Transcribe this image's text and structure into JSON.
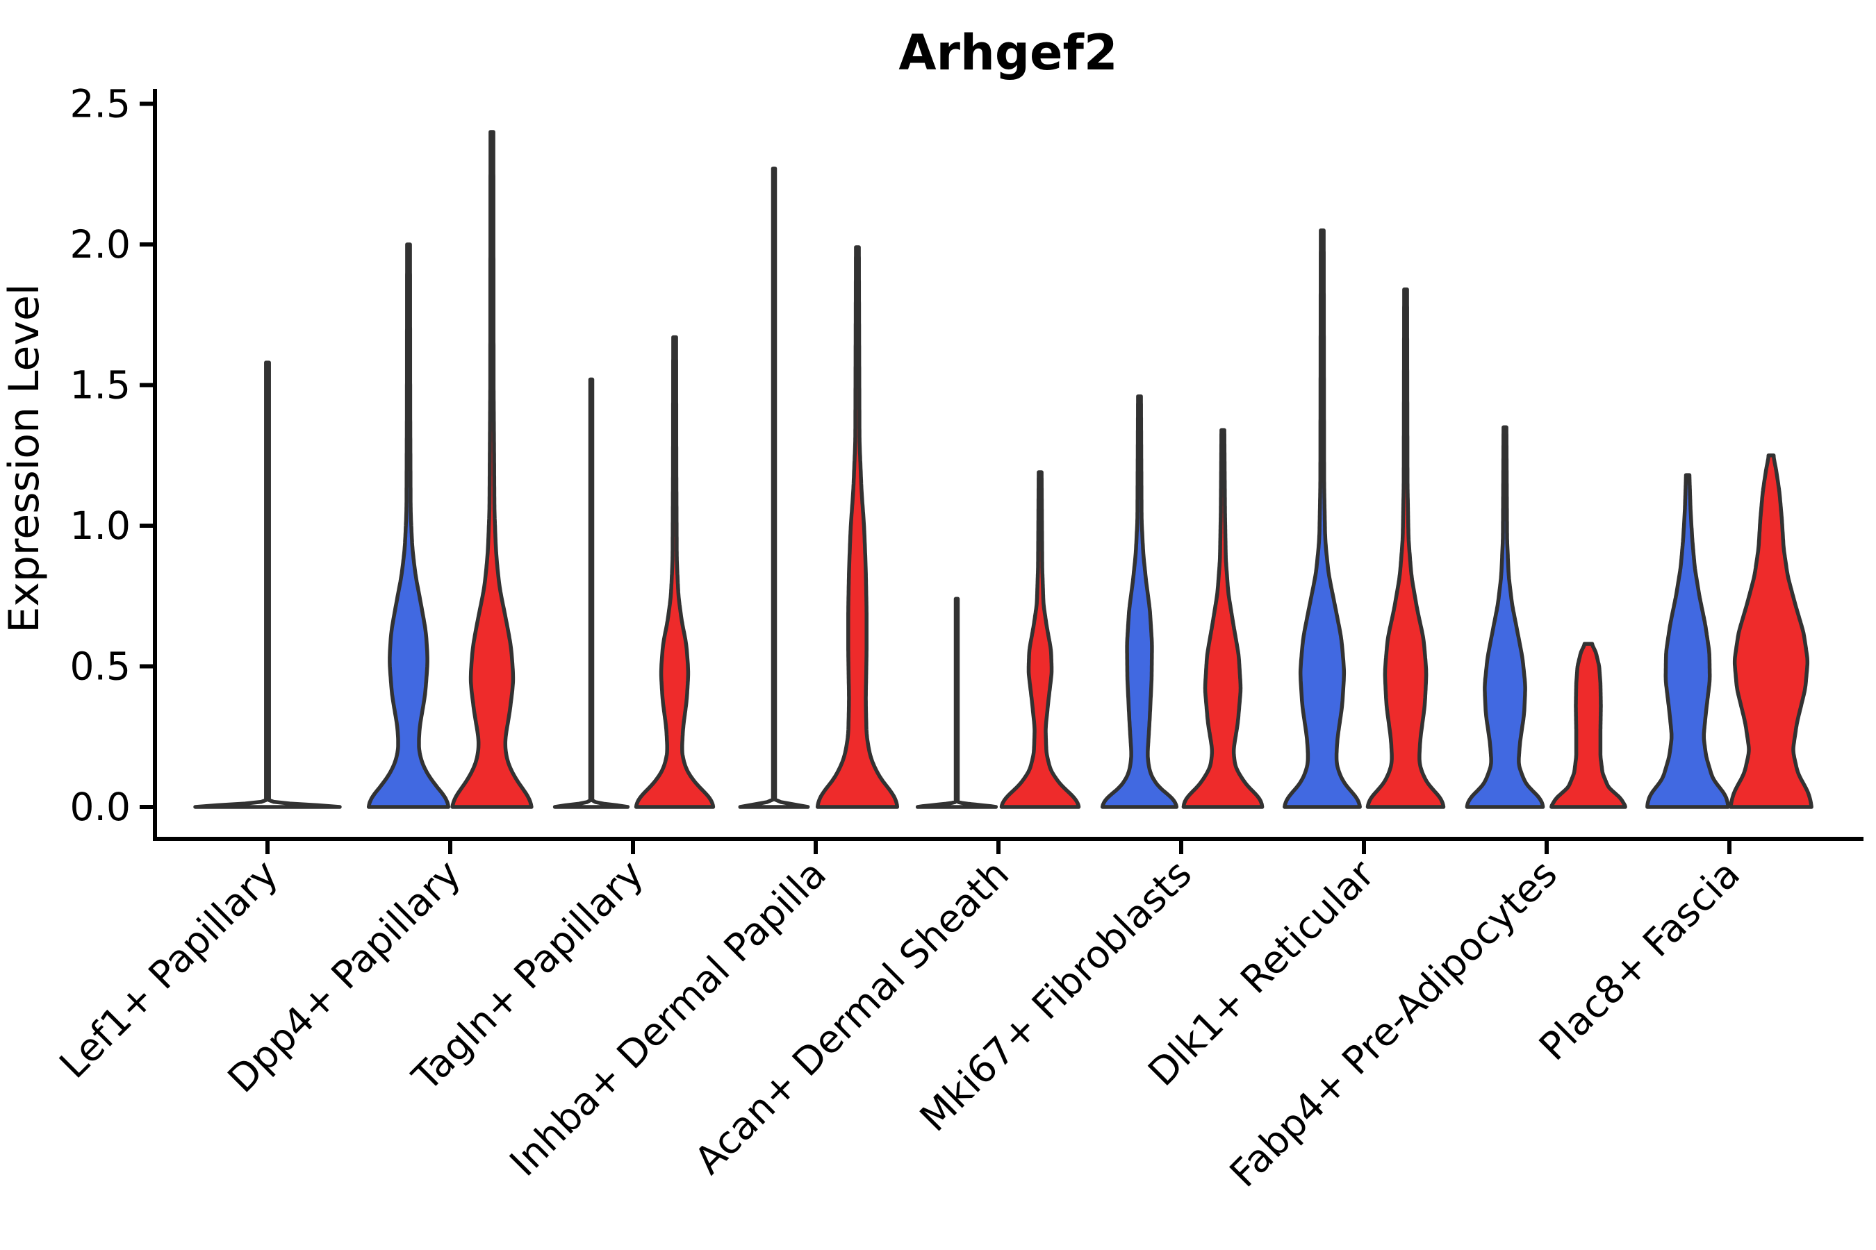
{
  "chart_data": {
    "type": "violin",
    "title": "Arhgef2",
    "ylabel": "Expression Level",
    "xlabel": "",
    "ylim": [
      0,
      2.5
    ],
    "yticks": [
      "0.0",
      "0.5",
      "1.0",
      "1.5",
      "2.0",
      "2.5"
    ],
    "ytick_values": [
      0.0,
      0.5,
      1.0,
      1.5,
      2.0,
      2.5
    ],
    "grid": false,
    "legend": "none",
    "groups": [
      "blue",
      "red"
    ],
    "colors": {
      "blue": "#4169E1",
      "red": "#EE2B2B",
      "none": "none",
      "outline": "#323232",
      "axis": "#000000"
    },
    "categories": [
      {
        "label": "Lef1+ Papillary",
        "violins": [
          {
            "group": "single",
            "color": "none",
            "side": "center",
            "flat": true,
            "max": 1.58,
            "profile": [
              [
                0,
                1
              ],
              [
                0.015,
                0.012
              ],
              [
                1.58,
                0.012
              ]
            ]
          }
        ]
      },
      {
        "label": "Dpp4+ Papillary",
        "violins": [
          {
            "group": "blue",
            "color": "blue",
            "side": "left",
            "flat": false,
            "max": 2.0,
            "profile": [
              [
                0,
                0.98
              ],
              [
                0.03,
                0.93
              ],
              [
                0.08,
                0.62
              ],
              [
                0.14,
                0.36
              ],
              [
                0.2,
                0.24
              ],
              [
                0.28,
                0.26
              ],
              [
                0.4,
                0.4
              ],
              [
                0.52,
                0.46
              ],
              [
                0.62,
                0.42
              ],
              [
                0.72,
                0.3
              ],
              [
                0.82,
                0.17
              ],
              [
                0.92,
                0.09
              ],
              [
                1.05,
                0.05
              ],
              [
                1.4,
                0.04
              ],
              [
                2.0,
                0.035
              ]
            ]
          },
          {
            "group": "red",
            "color": "red",
            "side": "right",
            "flat": false,
            "max": 2.4,
            "profile": [
              [
                0,
                0.98
              ],
              [
                0.03,
                0.93
              ],
              [
                0.09,
                0.6
              ],
              [
                0.16,
                0.36
              ],
              [
                0.23,
                0.3
              ],
              [
                0.33,
                0.42
              ],
              [
                0.45,
                0.52
              ],
              [
                0.57,
                0.46
              ],
              [
                0.68,
                0.32
              ],
              [
                0.78,
                0.18
              ],
              [
                0.9,
                0.1
              ],
              [
                1.05,
                0.06
              ],
              [
                1.5,
                0.04
              ],
              [
                2.4,
                0.035
              ]
            ]
          }
        ]
      },
      {
        "label": "Tagln+ Papillary",
        "violins": [
          {
            "group": "blue",
            "color": "none",
            "side": "left",
            "flat": true,
            "max": 1.52,
            "profile": [
              [
                0,
                1
              ],
              [
                0.015,
                0.025
              ],
              [
                1.52,
                0.025
              ]
            ]
          },
          {
            "group": "red",
            "color": "red",
            "side": "right",
            "flat": false,
            "max": 1.67,
            "profile": [
              [
                0,
                0.95
              ],
              [
                0.03,
                0.88
              ],
              [
                0.08,
                0.52
              ],
              [
                0.13,
                0.28
              ],
              [
                0.19,
                0.17
              ],
              [
                0.28,
                0.2
              ],
              [
                0.38,
                0.29
              ],
              [
                0.48,
                0.33
              ],
              [
                0.58,
                0.28
              ],
              [
                0.66,
                0.17
              ],
              [
                0.75,
                0.09
              ],
              [
                0.88,
                0.05
              ],
              [
                1.2,
                0.04
              ],
              [
                1.67,
                0.035
              ]
            ]
          }
        ]
      },
      {
        "label": "Inhba+ Dermal Papilla",
        "violins": [
          {
            "group": "blue",
            "color": "none",
            "side": "left",
            "flat": true,
            "max": 2.27,
            "profile": [
              [
                0,
                1
              ],
              [
                0.015,
                0.025
              ],
              [
                2.27,
                0.025
              ]
            ]
          },
          {
            "group": "red",
            "color": "red",
            "side": "right",
            "flat": false,
            "max": 1.99,
            "profile": [
              [
                0,
                0.98
              ],
              [
                0.04,
                0.9
              ],
              [
                0.1,
                0.55
              ],
              [
                0.17,
                0.32
              ],
              [
                0.25,
                0.22
              ],
              [
                0.38,
                0.2
              ],
              [
                0.55,
                0.22
              ],
              [
                0.7,
                0.22
              ],
              [
                0.85,
                0.2
              ],
              [
                1.0,
                0.16
              ],
              [
                1.12,
                0.1
              ],
              [
                1.3,
                0.05
              ],
              [
                1.99,
                0.035
              ]
            ]
          }
        ]
      },
      {
        "label": "Acan+ Dermal Sheath",
        "violins": [
          {
            "group": "blue",
            "color": "none",
            "side": "left",
            "flat": true,
            "max": 0.74,
            "profile": [
              [
                0,
                1
              ],
              [
                0.015,
                0.025
              ],
              [
                0.74,
                0.025
              ]
            ]
          },
          {
            "group": "red",
            "color": "red",
            "side": "right",
            "flat": false,
            "max": 1.19,
            "profile": [
              [
                0,
                0.95
              ],
              [
                0.03,
                0.85
              ],
              [
                0.08,
                0.48
              ],
              [
                0.13,
                0.25
              ],
              [
                0.19,
                0.15
              ],
              [
                0.28,
                0.13
              ],
              [
                0.38,
                0.2
              ],
              [
                0.48,
                0.28
              ],
              [
                0.56,
                0.26
              ],
              [
                0.64,
                0.16
              ],
              [
                0.72,
                0.08
              ],
              [
                0.85,
                0.05
              ],
              [
                1.19,
                0.035
              ]
            ]
          }
        ]
      },
      {
        "label": "Mki67+ Fibroblasts",
        "violins": [
          {
            "group": "blue",
            "color": "blue",
            "side": "left",
            "flat": false,
            "max": 1.46,
            "profile": [
              [
                0,
                0.92
              ],
              [
                0.03,
                0.82
              ],
              [
                0.07,
                0.45
              ],
              [
                0.12,
                0.25
              ],
              [
                0.18,
                0.19
              ],
              [
                0.3,
                0.24
              ],
              [
                0.45,
                0.29
              ],
              [
                0.58,
                0.3
              ],
              [
                0.7,
                0.25
              ],
              [
                0.8,
                0.16
              ],
              [
                0.9,
                0.09
              ],
              [
                1.02,
                0.05
              ],
              [
                1.46,
                0.035
              ]
            ]
          },
          {
            "group": "red",
            "color": "red",
            "side": "right",
            "flat": false,
            "max": 1.34,
            "profile": [
              [
                0,
                0.96
              ],
              [
                0.03,
                0.9
              ],
              [
                0.08,
                0.55
              ],
              [
                0.14,
                0.3
              ],
              [
                0.2,
                0.25
              ],
              [
                0.3,
                0.36
              ],
              [
                0.42,
                0.43
              ],
              [
                0.54,
                0.38
              ],
              [
                0.65,
                0.25
              ],
              [
                0.76,
                0.13
              ],
              [
                0.88,
                0.07
              ],
              [
                1.05,
                0.05
              ],
              [
                1.34,
                0.035
              ]
            ]
          }
        ]
      },
      {
        "label": "Dlk1+ Reticular",
        "violins": [
          {
            "group": "blue",
            "color": "blue",
            "side": "left",
            "flat": false,
            "max": 2.05,
            "profile": [
              [
                0,
                0.93
              ],
              [
                0.03,
                0.88
              ],
              [
                0.08,
                0.52
              ],
              [
                0.15,
                0.33
              ],
              [
                0.24,
                0.36
              ],
              [
                0.36,
                0.48
              ],
              [
                0.48,
                0.53
              ],
              [
                0.6,
                0.46
              ],
              [
                0.72,
                0.3
              ],
              [
                0.83,
                0.15
              ],
              [
                0.95,
                0.07
              ],
              [
                1.15,
                0.045
              ],
              [
                2.05,
                0.035
              ]
            ]
          },
          {
            "group": "red",
            "color": "red",
            "side": "right",
            "flat": false,
            "max": 1.84,
            "profile": [
              [
                0,
                0.93
              ],
              [
                0.03,
                0.88
              ],
              [
                0.08,
                0.52
              ],
              [
                0.15,
                0.32
              ],
              [
                0.24,
                0.35
              ],
              [
                0.36,
                0.46
              ],
              [
                0.48,
                0.5
              ],
              [
                0.6,
                0.43
              ],
              [
                0.7,
                0.28
              ],
              [
                0.82,
                0.14
              ],
              [
                0.95,
                0.07
              ],
              [
                1.15,
                0.045
              ],
              [
                1.84,
                0.035
              ]
            ]
          }
        ]
      },
      {
        "label": "Fabp4+ Pre-Adipocytes",
        "violins": [
          {
            "group": "blue",
            "color": "blue",
            "side": "left",
            "flat": false,
            "max": 1.35,
            "profile": [
              [
                0,
                0.93
              ],
              [
                0.03,
                0.86
              ],
              [
                0.08,
                0.5
              ],
              [
                0.15,
                0.32
              ],
              [
                0.23,
                0.36
              ],
              [
                0.33,
                0.46
              ],
              [
                0.43,
                0.49
              ],
              [
                0.53,
                0.42
              ],
              [
                0.63,
                0.29
              ],
              [
                0.72,
                0.17
              ],
              [
                0.82,
                0.09
              ],
              [
                0.95,
                0.05
              ],
              [
                1.35,
                0.035
              ]
            ]
          },
          {
            "group": "red",
            "color": "red",
            "side": "right",
            "flat": false,
            "max": 0.58,
            "profile": [
              [
                0,
                0.9
              ],
              [
                0.03,
                0.78
              ],
              [
                0.07,
                0.48
              ],
              [
                0.12,
                0.34
              ],
              [
                0.18,
                0.29
              ],
              [
                0.27,
                0.29
              ],
              [
                0.36,
                0.3
              ],
              [
                0.44,
                0.29
              ],
              [
                0.5,
                0.26
              ],
              [
                0.55,
                0.18
              ],
              [
                0.58,
                0.08
              ]
            ]
          }
        ]
      },
      {
        "label": "Plac8+ Fascia",
        "violins": [
          {
            "group": "blue",
            "color": "blue",
            "side": "left",
            "flat": false,
            "max": 1.18,
            "profile": [
              [
                0,
                0.98
              ],
              [
                0.04,
                0.92
              ],
              [
                0.1,
                0.6
              ],
              [
                0.18,
                0.44
              ],
              [
                0.25,
                0.38
              ],
              [
                0.34,
                0.44
              ],
              [
                0.45,
                0.53
              ],
              [
                0.55,
                0.52
              ],
              [
                0.65,
                0.42
              ],
              [
                0.75,
                0.28
              ],
              [
                0.85,
                0.17
              ],
              [
                0.95,
                0.11
              ],
              [
                1.05,
                0.07
              ],
              [
                1.18,
                0.04
              ]
            ]
          },
          {
            "group": "red",
            "color": "red",
            "side": "right",
            "flat": false,
            "max": 1.25,
            "profile": [
              [
                0,
                0.98
              ],
              [
                0.05,
                0.9
              ],
              [
                0.12,
                0.64
              ],
              [
                0.2,
                0.52
              ],
              [
                0.3,
                0.62
              ],
              [
                0.42,
                0.82
              ],
              [
                0.52,
                0.88
              ],
              [
                0.62,
                0.78
              ],
              [
                0.72,
                0.58
              ],
              [
                0.82,
                0.4
              ],
              [
                0.92,
                0.3
              ],
              [
                1.02,
                0.26
              ],
              [
                1.12,
                0.2
              ],
              [
                1.2,
                0.12
              ],
              [
                1.25,
                0.05
              ]
            ]
          }
        ]
      }
    ]
  }
}
